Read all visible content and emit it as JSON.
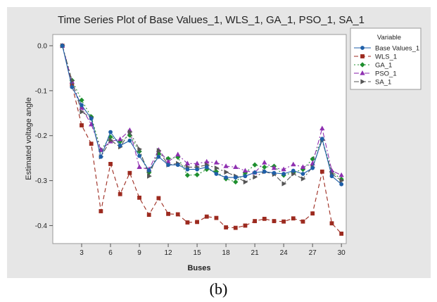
{
  "caption": "(b)",
  "chart_data": {
    "type": "line",
    "title": "Time Series Plot of Base Values_1, WLS_1, GA_1, PSO_1, SA_1",
    "xlabel": "Buses",
    "ylabel": "Estimated voltage angle",
    "xlim": [
      0,
      30.5
    ],
    "ylim": [
      -0.44,
      0.025
    ],
    "x_ticks": [
      3,
      6,
      9,
      12,
      15,
      18,
      21,
      24,
      27,
      30
    ],
    "y_ticks": [
      0.0,
      -0.1,
      -0.2,
      -0.3,
      -0.4
    ],
    "y_tick_labels": [
      "0.0",
      "-0.1",
      "-0.2",
      "-0.3",
      "-0.4"
    ],
    "grid": false,
    "legend_title": "Variable",
    "legend_position": "right",
    "x": [
      1,
      2,
      3,
      4,
      5,
      6,
      7,
      8,
      9,
      10,
      11,
      12,
      13,
      14,
      15,
      16,
      17,
      18,
      19,
      20,
      21,
      22,
      23,
      24,
      25,
      26,
      27,
      28,
      29,
      30
    ],
    "series": [
      {
        "name": "Base Values_1",
        "color": "#1f5fa8",
        "dash": "",
        "marker": "circle",
        "values": [
          0.0,
          -0.092,
          -0.132,
          -0.162,
          -0.247,
          -0.192,
          -0.222,
          -0.211,
          -0.245,
          -0.277,
          -0.247,
          -0.265,
          -0.265,
          -0.275,
          -0.275,
          -0.27,
          -0.285,
          -0.293,
          -0.293,
          -0.29,
          -0.282,
          -0.28,
          -0.283,
          -0.285,
          -0.278,
          -0.285,
          -0.272,
          -0.207,
          -0.29,
          -0.308
        ]
      },
      {
        "name": "WLS_1",
        "color": "#9c2a1f",
        "dash": "6,4",
        "marker": "square",
        "values": [
          0.0,
          -0.087,
          -0.177,
          -0.218,
          -0.368,
          -0.263,
          -0.33,
          -0.283,
          -0.338,
          -0.376,
          -0.339,
          -0.374,
          -0.375,
          -0.393,
          -0.392,
          -0.38,
          -0.383,
          -0.404,
          -0.405,
          -0.4,
          -0.39,
          -0.385,
          -0.39,
          -0.391,
          -0.384,
          -0.391,
          -0.373,
          -0.28,
          -0.395,
          -0.418
        ]
      },
      {
        "name": "GA_1",
        "color": "#1f8f2f",
        "dash": "2,3",
        "marker": "diamond",
        "values": [
          0.0,
          -0.077,
          -0.121,
          -0.158,
          -0.232,
          -0.203,
          -0.213,
          -0.199,
          -0.235,
          -0.282,
          -0.24,
          -0.251,
          -0.248,
          -0.288,
          -0.287,
          -0.275,
          -0.28,
          -0.296,
          -0.303,
          -0.283,
          -0.265,
          -0.27,
          -0.268,
          -0.288,
          -0.282,
          -0.275,
          -0.252,
          -0.209,
          -0.28,
          -0.297
        ]
      },
      {
        "name": "PSO_1",
        "color": "#8e2fb0",
        "dash": "7,3,2,3",
        "marker": "triangle-up",
        "values": [
          0.0,
          -0.08,
          -0.138,
          -0.175,
          -0.232,
          -0.213,
          -0.208,
          -0.188,
          -0.27,
          -0.275,
          -0.232,
          -0.258,
          -0.242,
          -0.262,
          -0.262,
          -0.258,
          -0.26,
          -0.268,
          -0.27,
          -0.278,
          -0.282,
          -0.26,
          -0.272,
          -0.275,
          -0.264,
          -0.27,
          -0.262,
          -0.184,
          -0.278,
          -0.288
        ]
      },
      {
        "name": "SA_1",
        "color": "#555555",
        "dash": "7,3,2,3,2,3",
        "marker": "triangle-right",
        "values": [
          0.0,
          -0.078,
          -0.147,
          -0.16,
          -0.247,
          -0.21,
          -0.225,
          -0.192,
          -0.23,
          -0.29,
          -0.233,
          -0.265,
          -0.262,
          -0.27,
          -0.27,
          -0.265,
          -0.272,
          -0.281,
          -0.29,
          -0.303,
          -0.292,
          -0.28,
          -0.286,
          -0.307,
          -0.285,
          -0.296,
          -0.27,
          -0.21,
          -0.285,
          -0.3
        ]
      }
    ]
  }
}
